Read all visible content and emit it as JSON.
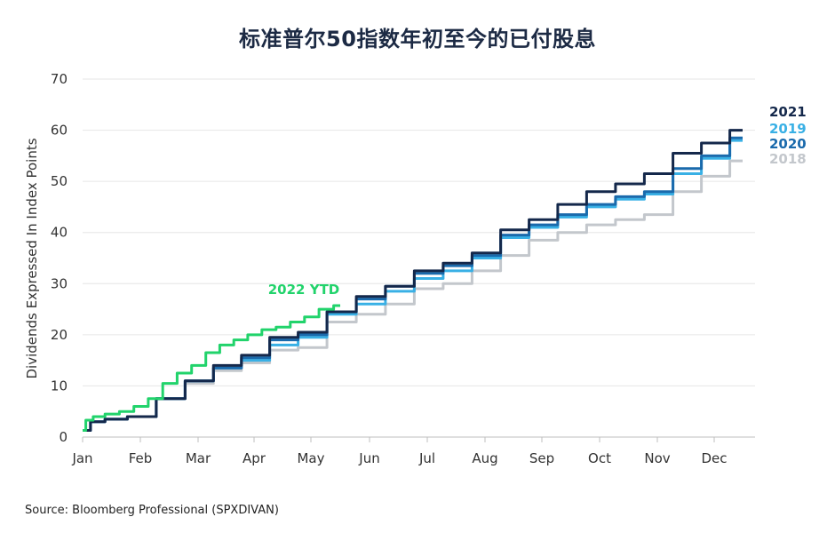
{
  "chart_data": {
    "type": "line",
    "title": "标准普尔50指数年初至今的已付股息",
    "ylabel": "Dividends Expressed In Index Points",
    "xlabel": "",
    "ylim": [
      0,
      70
    ],
    "yticks": [
      0,
      10,
      20,
      30,
      40,
      50,
      60,
      70
    ],
    "x_ticks": [
      "Jan",
      "Feb",
      "Mar",
      "Apr",
      "May",
      "Jun",
      "Jul",
      "Aug",
      "Sep",
      "Oct",
      "Nov",
      "Dec"
    ],
    "grid": true,
    "legend": "right",
    "annotation": "2022 YTD",
    "series": [
      {
        "name": "2018",
        "color": "#c3c7cc",
        "x": [
          0,
          0.25,
          0.5,
          1,
          1.5,
          2,
          2.5,
          3,
          3.5,
          4,
          4.5,
          5,
          5.5,
          6,
          6.5,
          7,
          7.5,
          8,
          8.5,
          9,
          9.5,
          10,
          10.5,
          11,
          11.5
        ],
        "y": [
          1.3,
          3.0,
          3.5,
          4.0,
          7.5,
          10.5,
          13.0,
          14.5,
          17.0,
          17.5,
          22.5,
          24.0,
          26.0,
          29.0,
          30.0,
          32.5,
          35.5,
          38.5,
          40.0,
          41.5,
          42.5,
          43.5,
          48.0,
          51.0,
          54.0
        ]
      },
      {
        "name": "2019",
        "color": "#39b0e5",
        "x": [
          0,
          0.25,
          0.5,
          1,
          1.5,
          2,
          2.5,
          3,
          3.5,
          4,
          4.5,
          5,
          5.5,
          6,
          6.5,
          7,
          7.5,
          8,
          8.5,
          9,
          9.5,
          10,
          10.5,
          11,
          11.5
        ],
        "y": [
          1.3,
          3.0,
          3.5,
          4.0,
          7.5,
          11.0,
          13.5,
          15.0,
          18.0,
          19.5,
          24.0,
          26.0,
          28.5,
          31.0,
          32.5,
          35.0,
          39.0,
          41.0,
          43.0,
          45.0,
          46.5,
          47.5,
          51.5,
          54.5,
          58.0
        ]
      },
      {
        "name": "2020",
        "color": "#1a6aac",
        "x": [
          0,
          0.25,
          0.5,
          1,
          1.5,
          2,
          2.5,
          3,
          3.5,
          4,
          4.5,
          5,
          5.5,
          6,
          6.5,
          7,
          7.5,
          8,
          8.5,
          9,
          9.5,
          10,
          10.5,
          11,
          11.5
        ],
        "y": [
          1.3,
          3.0,
          3.5,
          4.0,
          7.5,
          11.0,
          13.5,
          15.5,
          19.0,
          20.0,
          24.5,
          27.0,
          29.5,
          32.0,
          33.5,
          35.5,
          39.5,
          41.5,
          43.5,
          45.5,
          47.0,
          48.0,
          52.5,
          55.0,
          58.5
        ]
      },
      {
        "name": "2021",
        "color": "#14284b",
        "x": [
          0,
          0.25,
          0.5,
          1,
          1.5,
          2,
          2.5,
          3,
          3.5,
          4,
          4.5,
          5,
          5.5,
          6,
          6.5,
          7,
          7.5,
          8,
          8.5,
          9,
          9.5,
          10,
          10.5,
          11,
          11.5
        ],
        "y": [
          1.3,
          3.0,
          3.5,
          4.0,
          7.5,
          11.0,
          14.0,
          16.0,
          19.5,
          20.5,
          24.5,
          27.5,
          29.5,
          32.5,
          34.0,
          36.0,
          40.5,
          42.5,
          45.5,
          48.0,
          49.5,
          51.5,
          55.5,
          57.5,
          60.0
        ]
      },
      {
        "name": "2022 YTD",
        "color": "#21d36b",
        "x": [
          0,
          0.1,
          0.25,
          0.5,
          0.75,
          1,
          1.25,
          1.5,
          1.75,
          2,
          2.25,
          2.5,
          2.75,
          3,
          3.25,
          3.5,
          3.75,
          4,
          4.25,
          4.5
        ],
        "y": [
          1.3,
          3.3,
          4.0,
          4.5,
          5.0,
          6.0,
          7.5,
          10.5,
          12.5,
          14.0,
          16.5,
          18.0,
          19.0,
          20.0,
          21.0,
          21.5,
          22.5,
          23.5,
          25.0,
          25.7
        ]
      }
    ]
  },
  "source": "Source: Bloomberg Professional (SPXDIVAN)"
}
